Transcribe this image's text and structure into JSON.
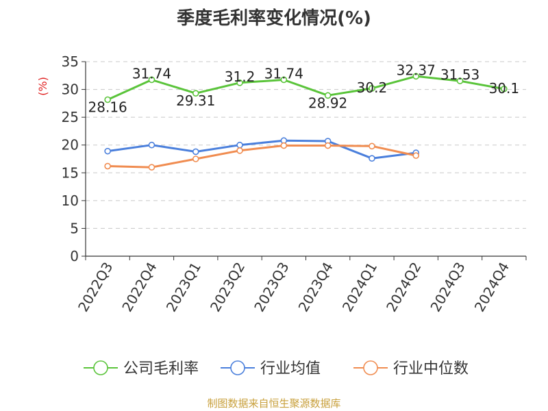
{
  "chart_data": {
    "type": "line",
    "title": "季度毛利率变化情况(%)",
    "ylabel": "(%)",
    "xlabel": "",
    "categories": [
      "2022Q3",
      "2022Q4",
      "2023Q1",
      "2023Q2",
      "2023Q3",
      "2023Q4",
      "2024Q1",
      "2024Q2",
      "2024Q3",
      "2024Q4"
    ],
    "ylim": [
      0,
      35
    ],
    "yticks": [
      "0",
      "5",
      "10",
      "15",
      "20",
      "25",
      "30",
      "35"
    ],
    "grid": true,
    "legend_position": "bottom",
    "series": [
      {
        "name": "公司毛利率",
        "color": "#5ac43a",
        "labeled": true,
        "values": [
          28.16,
          31.74,
          29.31,
          31.2,
          31.74,
          28.92,
          30.2,
          32.37,
          31.53,
          30.1
        ],
        "labels": [
          "28.16",
          "31.74",
          "29.31",
          "31.2",
          "31.74",
          "28.92",
          "30.2",
          "32.37",
          "31.53",
          "30.1"
        ]
      },
      {
        "name": "行业均值",
        "color": "#4a7fdc",
        "labeled": false,
        "values": [
          18.9,
          20.0,
          18.8,
          20.0,
          20.8,
          20.7,
          17.6,
          18.6,
          null,
          null
        ]
      },
      {
        "name": "行业中位数",
        "color": "#f08c50",
        "labeled": false,
        "values": [
          16.2,
          16.0,
          17.5,
          19.0,
          19.9,
          19.9,
          19.8,
          18.1,
          null,
          null
        ]
      }
    ]
  },
  "footer": {
    "source": "制图数据来自恒生聚源数据库"
  }
}
